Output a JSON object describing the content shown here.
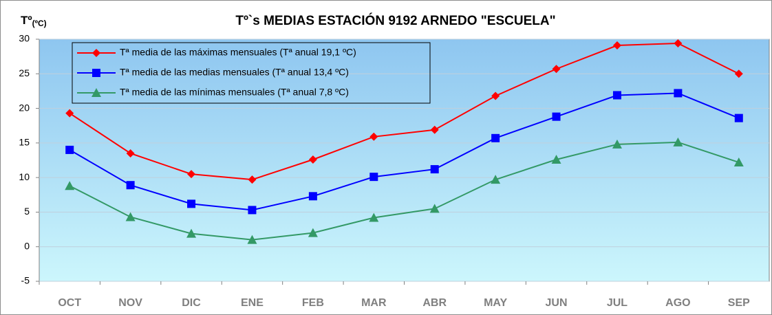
{
  "chart_data": {
    "type": "line",
    "title": "Tº`s MEDIAS ESTACIÓN 9192  ARNEDO \"ESCUELA\"",
    "ylabel": "Tº",
    "ylabel_unit": "(ºC)",
    "categories": [
      "OCT",
      "NOV",
      "DIC",
      "ENE",
      "FEB",
      "MAR",
      "ABR",
      "MAY",
      "JUN",
      "JUL",
      "AGO",
      "SEP"
    ],
    "series": [
      {
        "name": "Tª media de las máximas mensuales (Tª anual 19,1 ºC)",
        "color": "#ff0000",
        "marker": "diamond",
        "values": [
          19.3,
          13.5,
          10.5,
          9.7,
          12.6,
          15.9,
          16.9,
          21.8,
          25.7,
          29.1,
          29.4,
          25.0
        ]
      },
      {
        "name": "Tª media de las medias mensuales (Tª anual 13,4 ºC)",
        "color": "#0000ff",
        "marker": "square",
        "values": [
          14.0,
          8.9,
          6.2,
          5.3,
          7.3,
          10.1,
          11.2,
          15.7,
          18.8,
          21.9,
          22.2,
          18.6
        ]
      },
      {
        "name": "Tª media de las mínimas mensuales (Tª anual 7,8 ºC)",
        "color": "#339966",
        "marker": "triangle",
        "values": [
          8.8,
          4.3,
          1.9,
          1.0,
          2.0,
          4.2,
          5.5,
          9.7,
          12.6,
          14.8,
          15.1,
          12.2
        ]
      }
    ],
    "ylim": [
      -5,
      30
    ],
    "yticks": [
      -5,
      0,
      5,
      10,
      15,
      20,
      25,
      30
    ],
    "grid": true,
    "legend": "top-left"
  }
}
